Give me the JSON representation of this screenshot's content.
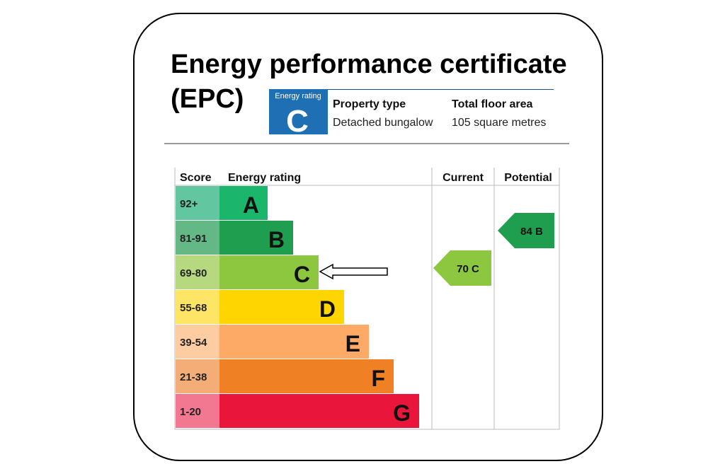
{
  "header": {
    "title_line1": "Energy performance certificate",
    "title_line2": "(EPC)"
  },
  "badge": {
    "label": "Energy rating",
    "letter": "C"
  },
  "property": {
    "type_label": "Property type",
    "type_value": "Detached bungalow",
    "area_label": "Total floor area",
    "area_value": "105 square metres"
  },
  "table": {
    "headers": [
      "Score",
      "Energy rating",
      "Current",
      "Potential"
    ],
    "bands": [
      {
        "score": "92+",
        "letter": "A"
      },
      {
        "score": "81-91",
        "letter": "B"
      },
      {
        "score": "69-80",
        "letter": "C"
      },
      {
        "score": "55-68",
        "letter": "D"
      },
      {
        "score": "39-54",
        "letter": "E"
      },
      {
        "score": "21-38",
        "letter": "F"
      },
      {
        "score": "1-20",
        "letter": "G"
      }
    ],
    "current": {
      "score": 70,
      "letter": "C"
    },
    "potential": {
      "score": 84,
      "letter": "B"
    }
  }
}
